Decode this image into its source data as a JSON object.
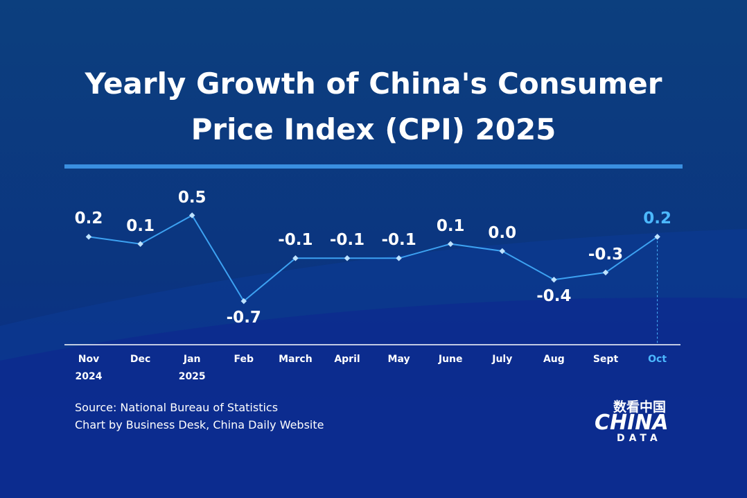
{
  "chart_data": {
    "type": "line",
    "title": "Yearly Growth of China's Consumer Price Index (CPI) 2025",
    "categories": [
      "Nov\n2024",
      "Dec",
      "Jan\n2025",
      "Feb",
      "March",
      "April",
      "May",
      "June",
      "July",
      "Aug",
      "Sept",
      "Oct"
    ],
    "values": [
      0.2,
      0.1,
      0.5,
      -0.7,
      -0.1,
      -0.1,
      -0.1,
      0.1,
      0.0,
      -0.4,
      -0.3,
      0.2
    ],
    "value_labels": [
      "0.2",
      "0.1",
      "0.5",
      "-0.7",
      "-0.1",
      "-0.1",
      "-0.1",
      "0.1",
      "0.0",
      "-0.4",
      "-0.3",
      "0.2"
    ],
    "color": "#3da2f2",
    "highlight_index": 11,
    "highlight_color": "#4cb8ff",
    "source": "Source: National Bureau of Statistics",
    "credit": "Chart by Business Desk, China Daily Website",
    "logo": {
      "top": "数看中国",
      "main": "CHINA",
      "sub": "DATA"
    }
  }
}
